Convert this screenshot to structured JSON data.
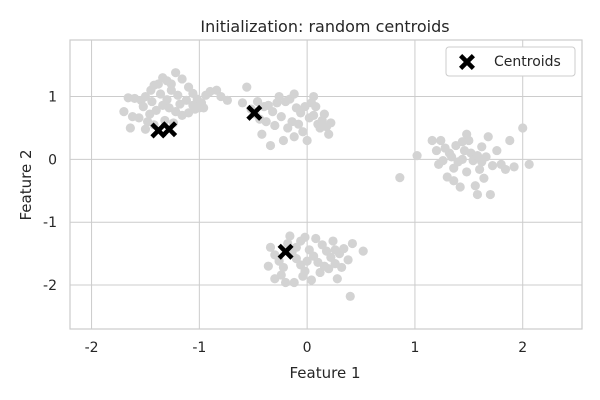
{
  "chart_data": {
    "type": "scatter",
    "title": "Initialization: random centroids",
    "xlabel": "Feature 1",
    "ylabel": "Feature 2",
    "xlim": [
      -2.2,
      2.55
    ],
    "ylim": [
      -2.7,
      1.9
    ],
    "xticks": [
      -2,
      -1,
      0,
      1,
      2
    ],
    "xtick_labels": [
      "-2",
      "-1",
      "0",
      "1",
      "2"
    ],
    "yticks": [
      -2,
      -1,
      0,
      1
    ],
    "ytick_labels": [
      "-2",
      "-1",
      "0",
      "1"
    ],
    "grid": true,
    "legend_position": "top-right",
    "colors": {
      "points": "#d3d3d3",
      "centroids": "#000000",
      "grid": "#cccccc",
      "spine": "#cccccc",
      "legend_border": "#cccccc"
    },
    "series": [
      {
        "name": "",
        "marker": "circle",
        "points": [
          [
            -1.66,
            0.98
          ],
          [
            -1.6,
            0.97
          ],
          [
            -1.54,
            0.94
          ],
          [
            -1.5,
            1.0
          ],
          [
            -1.45,
            1.1
          ],
          [
            -1.42,
            1.18
          ],
          [
            -1.38,
            1.2
          ],
          [
            -1.34,
            1.3
          ],
          [
            -1.3,
            1.25
          ],
          [
            -1.26,
            1.2
          ],
          [
            -1.22,
            1.38
          ],
          [
            -1.16,
            1.28
          ],
          [
            -1.1,
            1.15
          ],
          [
            -1.06,
            1.05
          ],
          [
            -1.02,
            0.96
          ],
          [
            -0.98,
            0.9
          ],
          [
            -0.94,
            1.02
          ],
          [
            -0.9,
            1.08
          ],
          [
            -0.84,
            1.1
          ],
          [
            -0.8,
            1.0
          ],
          [
            -0.96,
            0.82
          ],
          [
            -1.04,
            0.8
          ],
          [
            -1.1,
            0.74
          ],
          [
            -1.16,
            0.7
          ],
          [
            -1.22,
            0.76
          ],
          [
            -1.28,
            0.82
          ],
          [
            -1.34,
            0.86
          ],
          [
            -1.4,
            0.78
          ],
          [
            -1.46,
            0.72
          ],
          [
            -1.52,
            0.84
          ],
          [
            -1.56,
            0.66
          ],
          [
            -1.62,
            0.68
          ],
          [
            -1.7,
            0.76
          ],
          [
            -1.48,
            0.6
          ],
          [
            -1.42,
            0.55
          ],
          [
            -1.32,
            0.62
          ],
          [
            -1.24,
            0.58
          ],
          [
            -1.18,
            0.88
          ],
          [
            -1.3,
            0.95
          ],
          [
            -1.36,
            1.04
          ],
          [
            -1.2,
            1.02
          ],
          [
            -1.12,
            0.94
          ],
          [
            -1.06,
            0.86
          ],
          [
            -1.44,
            0.92
          ],
          [
            -1.26,
            1.1
          ],
          [
            -1.64,
            0.5
          ],
          [
            -1.5,
            0.48
          ],
          [
            -1.0,
            0.82
          ],
          [
            -0.74,
            0.94
          ],
          [
            -0.6,
            0.9
          ],
          [
            -0.56,
            1.15
          ],
          [
            -0.52,
            0.8
          ],
          [
            -0.48,
            0.72
          ],
          [
            -0.44,
            0.64
          ],
          [
            -0.4,
            0.84
          ],
          [
            -0.36,
            0.86
          ],
          [
            -0.32,
            0.76
          ],
          [
            -0.28,
            0.9
          ],
          [
            -0.24,
            0.68
          ],
          [
            -0.2,
            0.92
          ],
          [
            -0.16,
            0.96
          ],
          [
            -0.12,
            1.04
          ],
          [
            -0.1,
            0.82
          ],
          [
            -0.06,
            0.74
          ],
          [
            -0.02,
            0.84
          ],
          [
            0.02,
            0.66
          ],
          [
            0.06,
            0.7
          ],
          [
            0.1,
            0.56
          ],
          [
            0.14,
            0.62
          ],
          [
            0.18,
            0.52
          ],
          [
            0.22,
            0.58
          ],
          [
            0.04,
            0.9
          ],
          [
            0.08,
            0.84
          ],
          [
            -0.08,
            0.56
          ],
          [
            -0.18,
            0.5
          ],
          [
            -0.3,
            0.54
          ],
          [
            -0.42,
            0.4
          ],
          [
            -0.22,
            0.3
          ],
          [
            -0.12,
            0.36
          ],
          [
            -0.04,
            0.44
          ],
          [
            0.0,
            0.3
          ],
          [
            0.12,
            0.5
          ],
          [
            0.2,
            0.4
          ],
          [
            -0.34,
            0.22
          ],
          [
            -0.26,
            1.0
          ],
          [
            -0.14,
            0.6
          ],
          [
            -0.38,
            0.6
          ],
          [
            0.16,
            0.72
          ],
          [
            0.06,
            1.0
          ],
          [
            -0.46,
            0.92
          ],
          [
            0.86,
            -0.29
          ],
          [
            1.02,
            0.06
          ],
          [
            1.16,
            0.3
          ],
          [
            1.2,
            0.14
          ],
          [
            1.22,
            -0.08
          ],
          [
            1.26,
            -0.02
          ],
          [
            1.3,
            -0.28
          ],
          [
            1.32,
            0.1
          ],
          [
            1.34,
            0.04
          ],
          [
            1.36,
            -0.14
          ],
          [
            1.38,
            0.22
          ],
          [
            1.4,
            -0.04
          ],
          [
            1.42,
            -0.44
          ],
          [
            1.44,
            0.0
          ],
          [
            1.46,
            0.14
          ],
          [
            1.48,
            -0.2
          ],
          [
            1.5,
            0.3
          ],
          [
            1.52,
            0.1
          ],
          [
            1.54,
            -0.02
          ],
          [
            1.56,
            -0.42
          ],
          [
            1.58,
            0.06
          ],
          [
            1.6,
            -0.16
          ],
          [
            1.62,
            0.2
          ],
          [
            1.64,
            -0.3
          ],
          [
            1.66,
            0.04
          ],
          [
            1.68,
            0.36
          ],
          [
            1.7,
            -0.56
          ],
          [
            1.72,
            -0.1
          ],
          [
            1.76,
            0.14
          ],
          [
            1.8,
            -0.08
          ],
          [
            1.84,
            -0.16
          ],
          [
            1.88,
            0.3
          ],
          [
            1.92,
            -0.12
          ],
          [
            2.0,
            0.5
          ],
          [
            2.06,
            -0.08
          ],
          [
            1.28,
            0.18
          ],
          [
            1.36,
            -0.34
          ],
          [
            1.44,
            0.28
          ],
          [
            1.48,
            0.4
          ],
          [
            1.58,
            -0.56
          ],
          [
            1.62,
            -0.04
          ],
          [
            1.24,
            0.3
          ],
          [
            -0.34,
            -1.4
          ],
          [
            -0.3,
            -1.52
          ],
          [
            -0.26,
            -1.62
          ],
          [
            -0.22,
            -1.72
          ],
          [
            -0.18,
            -1.34
          ],
          [
            -0.14,
            -1.48
          ],
          [
            -0.1,
            -1.58
          ],
          [
            -0.06,
            -1.68
          ],
          [
            -0.02,
            -1.78
          ],
          [
            0.02,
            -1.44
          ],
          [
            0.06,
            -1.54
          ],
          [
            0.1,
            -1.64
          ],
          [
            0.14,
            -1.36
          ],
          [
            0.18,
            -1.46
          ],
          [
            0.22,
            -1.56
          ],
          [
            0.26,
            -1.66
          ],
          [
            0.3,
            -1.5
          ],
          [
            0.34,
            -1.42
          ],
          [
            0.38,
            -1.6
          ],
          [
            0.42,
            -1.34
          ],
          [
            -0.3,
            -1.9
          ],
          [
            -0.24,
            -1.84
          ],
          [
            -0.12,
            -1.96
          ],
          [
            -0.04,
            -1.86
          ],
          [
            0.04,
            -1.92
          ],
          [
            0.12,
            -1.8
          ],
          [
            0.2,
            -1.74
          ],
          [
            0.28,
            -1.9
          ],
          [
            0.4,
            -2.18
          ],
          [
            0.52,
            -1.46
          ],
          [
            -0.16,
            -1.22
          ],
          [
            -0.06,
            -1.3
          ],
          [
            0.08,
            -1.26
          ],
          [
            0.24,
            -1.3
          ],
          [
            -0.36,
            -1.7
          ],
          [
            0.16,
            -1.7
          ],
          [
            -0.2,
            -1.96
          ],
          [
            0.0,
            -1.62
          ],
          [
            0.32,
            -1.72
          ],
          [
            -0.1,
            -1.4
          ],
          [
            0.26,
            -1.44
          ],
          [
            -0.02,
            -1.24
          ]
        ]
      },
      {
        "name": "Centroids",
        "marker": "x-filled",
        "points": [
          [
            -1.38,
            0.46
          ],
          [
            -1.28,
            0.48
          ],
          [
            -0.49,
            0.74
          ],
          [
            -0.2,
            -1.47
          ]
        ]
      }
    ]
  }
}
